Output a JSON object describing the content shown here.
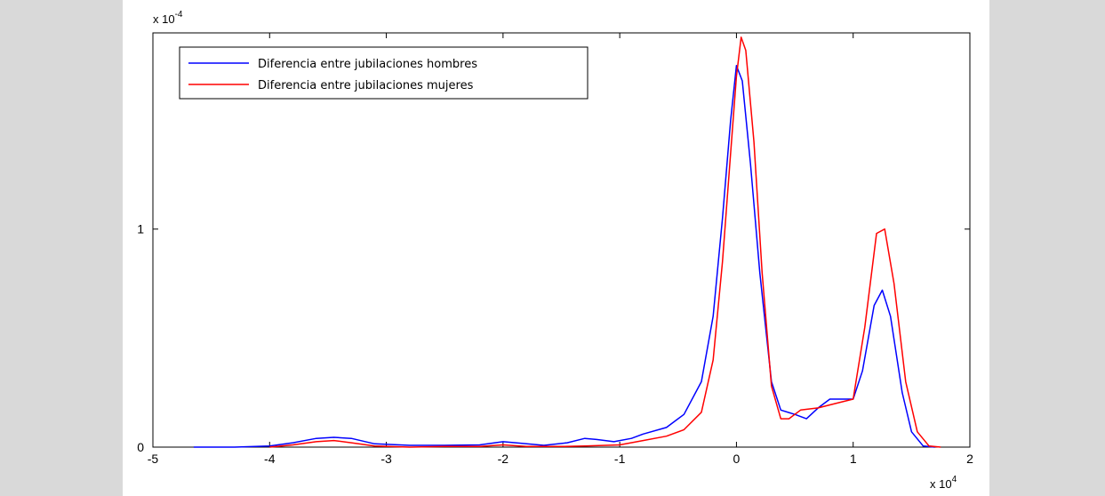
{
  "chart_data": {
    "type": "line",
    "title": "",
    "xlabel": "",
    "ylabel": "",
    "x_multiplier_label": "x 10",
    "x_multiplier_exp": "4",
    "y_multiplier_label": "x 10",
    "y_multiplier_exp": "-4",
    "xlim": [
      -5,
      2
    ],
    "ylim": [
      0,
      1.9
    ],
    "xticks": [
      -5,
      -4,
      -3,
      -2,
      -1,
      0,
      1,
      2
    ],
    "xtick_labels": [
      "-5",
      "-4",
      "-3",
      "-2",
      "-1",
      "0",
      "1",
      "2"
    ],
    "yticks": [
      0,
      1
    ],
    "ytick_labels": [
      "0",
      "1"
    ],
    "grid": false,
    "legend_position": "top-left",
    "series": [
      {
        "name": "Diferencia entre jubilaciones hombres",
        "color": "#0000ff",
        "points": [
          [
            -4.65,
            0
          ],
          [
            -4.3,
            0
          ],
          [
            -4.0,
            0.005
          ],
          [
            -3.8,
            0.02
          ],
          [
            -3.6,
            0.04
          ],
          [
            -3.45,
            0.045
          ],
          [
            -3.3,
            0.04
          ],
          [
            -3.1,
            0.015
          ],
          [
            -2.8,
            0.008
          ],
          [
            -2.5,
            0.008
          ],
          [
            -2.2,
            0.01
          ],
          [
            -2.0,
            0.025
          ],
          [
            -1.85,
            0.018
          ],
          [
            -1.65,
            0.008
          ],
          [
            -1.45,
            0.02
          ],
          [
            -1.3,
            0.04
          ],
          [
            -1.2,
            0.035
          ],
          [
            -1.05,
            0.025
          ],
          [
            -0.9,
            0.04
          ],
          [
            -0.8,
            0.06
          ],
          [
            -0.6,
            0.09
          ],
          [
            -0.45,
            0.15
          ],
          [
            -0.3,
            0.3
          ],
          [
            -0.2,
            0.6
          ],
          [
            -0.12,
            1.05
          ],
          [
            -0.05,
            1.5
          ],
          [
            0.0,
            1.75
          ],
          [
            0.05,
            1.68
          ],
          [
            0.12,
            1.3
          ],
          [
            0.2,
            0.8
          ],
          [
            0.3,
            0.3
          ],
          [
            0.38,
            0.17
          ],
          [
            0.5,
            0.15
          ],
          [
            0.6,
            0.13
          ],
          [
            0.7,
            0.18
          ],
          [
            0.8,
            0.22
          ],
          [
            0.9,
            0.22
          ],
          [
            1.0,
            0.22
          ],
          [
            1.08,
            0.35
          ],
          [
            1.18,
            0.65
          ],
          [
            1.25,
            0.72
          ],
          [
            1.32,
            0.6
          ],
          [
            1.42,
            0.25
          ],
          [
            1.5,
            0.07
          ],
          [
            1.6,
            0.005
          ],
          [
            1.7,
            0
          ]
        ]
      },
      {
        "name": "Diferencia entre jubilaciones mujeres",
        "color": "#ff0000",
        "points": [
          [
            -4.0,
            0
          ],
          [
            -3.8,
            0.01
          ],
          [
            -3.6,
            0.025
          ],
          [
            -3.45,
            0.03
          ],
          [
            -3.3,
            0.02
          ],
          [
            -3.1,
            0.005
          ],
          [
            -2.8,
            0
          ],
          [
            -2.5,
            0.003
          ],
          [
            -2.2,
            0.003
          ],
          [
            -2.0,
            0.01
          ],
          [
            -1.8,
            0.003
          ],
          [
            -1.5,
            0.003
          ],
          [
            -1.3,
            0.005
          ],
          [
            -1.0,
            0.01
          ],
          [
            -0.8,
            0.03
          ],
          [
            -0.6,
            0.05
          ],
          [
            -0.45,
            0.08
          ],
          [
            -0.3,
            0.16
          ],
          [
            -0.2,
            0.4
          ],
          [
            -0.12,
            0.85
          ],
          [
            -0.05,
            1.35
          ],
          [
            0.0,
            1.7
          ],
          [
            0.04,
            1.88
          ],
          [
            0.08,
            1.82
          ],
          [
            0.15,
            1.4
          ],
          [
            0.22,
            0.8
          ],
          [
            0.3,
            0.28
          ],
          [
            0.38,
            0.13
          ],
          [
            0.45,
            0.13
          ],
          [
            0.55,
            0.17
          ],
          [
            0.7,
            0.18
          ],
          [
            0.85,
            0.2
          ],
          [
            1.0,
            0.22
          ],
          [
            1.1,
            0.55
          ],
          [
            1.2,
            0.98
          ],
          [
            1.27,
            1.0
          ],
          [
            1.35,
            0.75
          ],
          [
            1.45,
            0.3
          ],
          [
            1.55,
            0.07
          ],
          [
            1.65,
            0.005
          ],
          [
            1.75,
            0
          ]
        ]
      }
    ]
  }
}
